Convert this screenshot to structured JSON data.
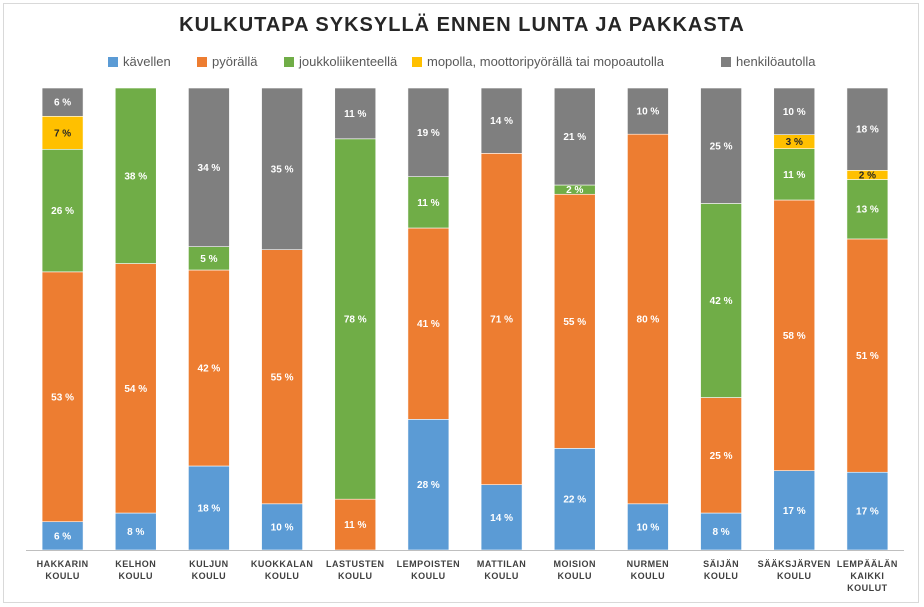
{
  "chart_data": {
    "type": "bar",
    "stacked": true,
    "title": "KULKUTAPA SYKSYLLÄ ENNEN LUNTA JA PAKKASTA",
    "legend_position": "top",
    "ylim": [
      0,
      100
    ],
    "grid": false,
    "categories": [
      [
        "HAKKARIN",
        "KOULU"
      ],
      [
        "KELHON",
        "KOULU"
      ],
      [
        "KULJUN",
        "KOULU"
      ],
      [
        "KUOKKALAN",
        "KOULU"
      ],
      [
        "LASTUSTEN",
        "KOULU"
      ],
      [
        "LEMPOISTEN",
        "KOULU"
      ],
      [
        "MATTILAN",
        "KOULU"
      ],
      [
        "MOISION",
        "KOULU"
      ],
      [
        "NURMEN",
        "KOULU"
      ],
      [
        "SÄIJÄN",
        "KOULU"
      ],
      [
        "SÄÄKSJÄRVEN",
        "KOULU"
      ],
      [
        "LEMPÄÄLÄN",
        "KAIKKI",
        "KOULUT"
      ]
    ],
    "series": [
      {
        "name": "kävellen",
        "color": "#5b9bd5",
        "values": [
          6,
          8,
          18,
          10,
          0,
          28,
          14,
          22,
          10,
          8,
          17,
          17
        ]
      },
      {
        "name": "pyörällä",
        "color": "#ed7d31",
        "values": [
          53,
          54,
          42,
          55,
          11,
          41,
          71,
          55,
          80,
          25,
          58,
          51
        ]
      },
      {
        "name": "joukkoliikenteellä",
        "color": "#70ad47",
        "values": [
          26,
          38,
          5,
          0,
          78,
          11,
          0,
          2,
          0,
          42,
          11,
          13
        ]
      },
      {
        "name": "mopolla, moottoripyörällä tai mopoautolla",
        "color": "#ffc000",
        "values": [
          7,
          0,
          0,
          0,
          0,
          0,
          0,
          0,
          0,
          0,
          3,
          2
        ]
      },
      {
        "name": "henkilöautolla",
        "color": "#7f7f7f",
        "values": [
          6,
          0,
          34,
          35,
          11,
          19,
          14,
          21,
          10,
          25,
          10,
          18
        ]
      }
    ],
    "value_suffix": " %"
  }
}
